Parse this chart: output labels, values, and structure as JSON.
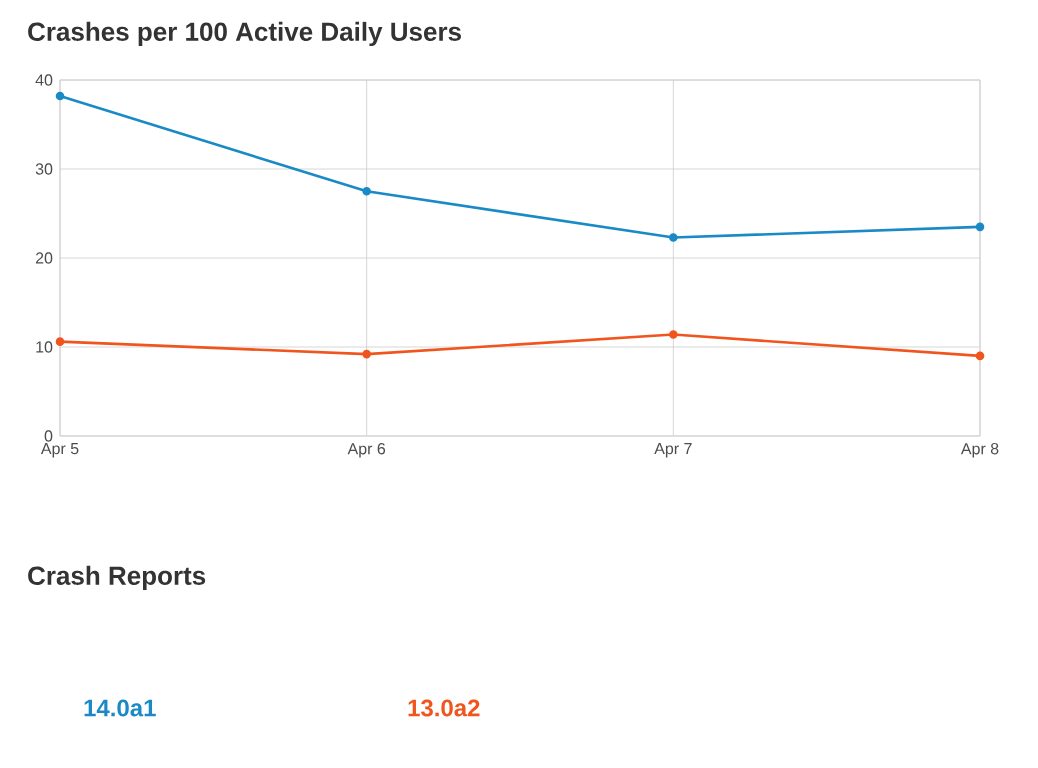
{
  "chart_data": {
    "type": "line",
    "title": "Crashes per 100 Active Daily Users",
    "categories": [
      "Apr 5",
      "Apr 6",
      "Apr 7",
      "Apr 8"
    ],
    "series": [
      {
        "name": "14.0a1",
        "color": "#1a8ac6",
        "values": [
          38.2,
          27.5,
          22.3,
          23.5
        ]
      },
      {
        "name": "13.0a2",
        "color": "#f0551e",
        "values": [
          10.6,
          9.2,
          11.4,
          9.0
        ]
      }
    ],
    "ylim": [
      0,
      40
    ],
    "yticks": [
      0,
      10,
      20,
      30,
      40
    ],
    "grid": true,
    "marker": "circle",
    "line_style": "solid",
    "annotations": [
      "Crash Reports"
    ]
  }
}
